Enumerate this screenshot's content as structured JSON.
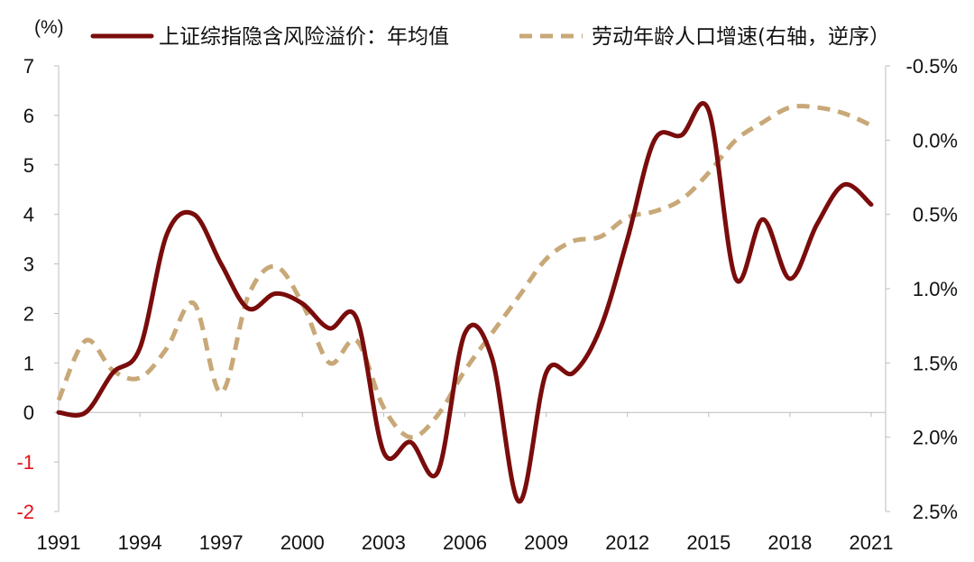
{
  "chart_data": {
    "type": "line",
    "unit_label": "(%)",
    "x": [
      1991,
      1992,
      1993,
      1994,
      1995,
      1996,
      1997,
      1998,
      1999,
      2000,
      2001,
      2002,
      2003,
      2004,
      2005,
      2006,
      2007,
      2008,
      2009,
      2010,
      2011,
      2012,
      2013,
      2014,
      2015,
      2016,
      2017,
      2018,
      2019,
      2020,
      2021
    ],
    "xticks": [
      "1991",
      "1994",
      "1997",
      "2000",
      "2003",
      "2006",
      "2009",
      "2012",
      "2015",
      "2018",
      "2021"
    ],
    "xlim": [
      1991,
      2021
    ],
    "left_axis": {
      "ticks": [
        "7",
        "6",
        "5",
        "4",
        "3",
        "2",
        "1",
        "0",
        "-1",
        "-2"
      ],
      "ylim": [
        -2,
        7
      ],
      "negative_color": "#e3121b"
    },
    "right_axis": {
      "ticks": [
        "-0.5%",
        "0.0%",
        "0.5%",
        "1.0%",
        "1.5%",
        "2.0%",
        "2.5%"
      ],
      "ylim": [
        2.5,
        -0.5
      ],
      "reversed": true
    },
    "series": [
      {
        "name": "上证综指隐含风险溢价：年均值",
        "axis": "left",
        "color": "#7a0c0c",
        "style": "solid",
        "values": [
          0.0,
          0.0,
          0.8,
          1.3,
          3.6,
          4.0,
          3.0,
          2.1,
          2.4,
          2.2,
          1.7,
          1.9,
          -0.8,
          -0.6,
          -1.2,
          1.6,
          1.1,
          -1.8,
          0.8,
          0.8,
          1.7,
          3.5,
          5.5,
          5.6,
          6.1,
          2.7,
          3.9,
          2.7,
          3.8,
          4.6,
          4.2
        ]
      },
      {
        "name": "劳动年龄人口增速(右轴，逆序）",
        "axis": "right",
        "color": "#c8a878",
        "style": "dashed",
        "values": [
          1.75,
          1.35,
          1.55,
          1.6,
          1.4,
          1.1,
          1.7,
          1.05,
          0.85,
          1.1,
          1.5,
          1.35,
          1.8,
          2.0,
          1.85,
          1.55,
          1.3,
          1.05,
          0.8,
          0.68,
          0.65,
          0.52,
          0.48,
          0.4,
          0.22,
          0.0,
          -0.12,
          -0.22,
          -0.22,
          -0.18,
          -0.1
        ]
      }
    ]
  }
}
